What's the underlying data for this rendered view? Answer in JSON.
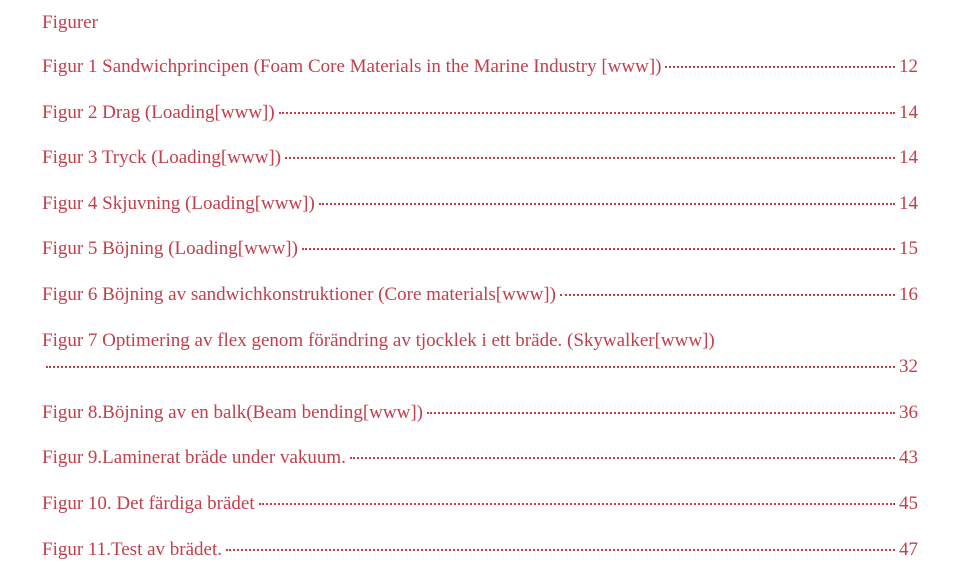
{
  "colors": {
    "text": "#c33e4a",
    "background": "#ffffff",
    "leader": "#c33e4a"
  },
  "typography": {
    "font_family": "Times New Roman",
    "heading_fontsize_pt": 14,
    "entry_fontsize_pt": 14,
    "line_spacing": 1.4
  },
  "heading": "Figurer",
  "entries": [
    {
      "title": "Figur 1 Sandwichprincipen (Foam Core Materials in the Marine Industry [www])",
      "page": "12"
    },
    {
      "title": "Figur 2 Drag (Loading[www]) ",
      "page": "14"
    },
    {
      "title": "Figur 3 Tryck (Loading[www])",
      "page": "14"
    },
    {
      "title": "Figur 4 Skjuvning (Loading[www])",
      "page": "14"
    },
    {
      "title": "Figur 5 Böjning (Loading[www])",
      "page": "15"
    },
    {
      "title": "Figur 6 Böjning av sandwichkonstruktioner (Core materials[www])",
      "page": "16"
    },
    {
      "title_line1": "Figur 7 Optimering av flex genom förändring av tjocklek i ett bräde. (Skywalker[www])",
      "title_line2": "",
      "page": "32",
      "multiline": true
    },
    {
      "title": "Figur 8.Böjning av en balk(Beam bending[www])",
      "page": "36"
    },
    {
      "title": "Figur 9.Laminerat bräde under vakuum. ",
      "page": "43"
    },
    {
      "title": "Figur 10. Det färdiga brädet",
      "page": "45"
    },
    {
      "title": "Figur 11.Test av brädet. ",
      "page": "47"
    }
  ]
}
